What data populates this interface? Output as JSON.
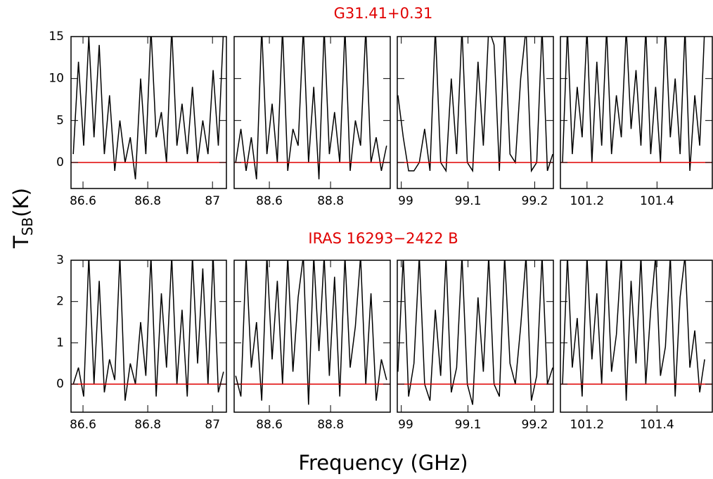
{
  "chart_data": {
    "type": "line",
    "xlabel": "Frequency (GHz)",
    "ylabel": [
      "T",
      "SB",
      "(K)"
    ],
    "line_color": "#000000",
    "hline": {
      "value": 0,
      "color": "#e00000"
    },
    "columns": [
      {
        "xlim": [
          86.563,
          87.043
        ],
        "xticks": [
          86.6,
          86.8,
          87
        ],
        "x": [
          86.57,
          86.586,
          86.602,
          86.618,
          86.634,
          86.65,
          86.666,
          86.682,
          86.698,
          86.714,
          86.73,
          86.746,
          86.762,
          86.778,
          86.794,
          86.81,
          86.826,
          86.842,
          86.858,
          86.874,
          86.89,
          86.906,
          86.922,
          86.938,
          86.954,
          86.97,
          86.986,
          87.002,
          87.018,
          87.034
        ]
      },
      {
        "xlim": [
          88.485,
          88.995
        ],
        "xticks": [
          88.6,
          88.8
        ],
        "x": [
          88.49,
          88.507,
          88.524,
          88.541,
          88.558,
          88.575,
          88.592,
          88.609,
          88.626,
          88.643,
          88.66,
          88.677,
          88.694,
          88.711,
          88.728,
          88.745,
          88.762,
          88.779,
          88.796,
          88.813,
          88.83,
          88.847,
          88.864,
          88.881,
          88.898,
          88.915,
          88.932,
          88.949,
          88.966,
          88.983
        ]
      },
      {
        "xlim": [
          98.994,
          99.228
        ],
        "xticks": [
          99,
          99.1,
          99.2
        ],
        "x": [
          98.995,
          99.003,
          99.011,
          99.019,
          99.027,
          99.035,
          99.043,
          99.051,
          99.059,
          99.067,
          99.075,
          99.083,
          99.091,
          99.099,
          99.107,
          99.115,
          99.123,
          99.131,
          99.139,
          99.147,
          99.155,
          99.163,
          99.171,
          99.179,
          99.187,
          99.195,
          99.203,
          99.211,
          99.219,
          99.227
        ]
      },
      {
        "xlim": [
          101.124,
          101.558
        ],
        "xticks": [
          101.2,
          101.4
        ],
        "x": [
          101.13,
          101.144,
          101.158,
          101.172,
          101.186,
          101.2,
          101.214,
          101.228,
          101.242,
          101.256,
          101.27,
          101.284,
          101.298,
          101.312,
          101.326,
          101.34,
          101.354,
          101.368,
          101.382,
          101.396,
          101.41,
          101.424,
          101.438,
          101.452,
          101.466,
          101.48,
          101.494,
          101.508,
          101.522,
          101.536
        ]
      }
    ],
    "rows": [
      {
        "title": "G31.41+0.31",
        "ylim": [
          -3.1,
          15
        ],
        "yticks": [
          0,
          5,
          10,
          15
        ],
        "values": [
          [
            1,
            12,
            2,
            15,
            3,
            14,
            1,
            8,
            -1,
            5,
            0,
            3,
            -2,
            10,
            1,
            16,
            3,
            6,
            0,
            16,
            2,
            7,
            1,
            9,
            0,
            5,
            1,
            11,
            2,
            16
          ],
          [
            0,
            4,
            -1,
            3,
            -2,
            16,
            1,
            7,
            0,
            16,
            -1,
            4,
            2,
            16,
            0,
            9,
            -2,
            16,
            1,
            6,
            0,
            16,
            -1,
            5,
            2,
            16,
            0,
            3,
            -1,
            2
          ],
          [
            8,
            3,
            -1,
            -1,
            0,
            4,
            -1,
            16,
            0,
            -1,
            10,
            1,
            16,
            0,
            -1,
            12,
            2,
            16,
            14,
            -1,
            16,
            1,
            0,
            10,
            16,
            -1,
            0,
            16,
            -1,
            1
          ],
          [
            0,
            16,
            1,
            9,
            3,
            16,
            0,
            12,
            2,
            16,
            1,
            8,
            3,
            16,
            4,
            11,
            2,
            16,
            1,
            9,
            0,
            16,
            3,
            10,
            1,
            16,
            -1,
            8,
            2,
            16
          ]
        ]
      },
      {
        "title": "IRAS 16293−2422 B",
        "ylim": [
          -0.68,
          3
        ],
        "yticks": [
          0,
          1,
          2,
          3
        ],
        "values": [
          [
            0,
            0.4,
            -0.3,
            3.1,
            0,
            2.5,
            -0.2,
            0.6,
            0.1,
            3.1,
            -0.4,
            0.5,
            0,
            1.5,
            0.2,
            3.1,
            -0.3,
            2.2,
            0.4,
            3.1,
            0,
            1.8,
            -0.3,
            3.1,
            0.5,
            2.8,
            0,
            3.1,
            -0.2,
            0.3
          ],
          [
            0.2,
            -0.3,
            3.1,
            0.4,
            1.5,
            -0.4,
            3.1,
            0.6,
            2.5,
            0,
            3.1,
            0.3,
            2.1,
            3.1,
            -0.5,
            3.1,
            0.8,
            3.1,
            0.2,
            2.6,
            -0.3,
            3.1,
            0.4,
            1.4,
            3.1,
            0,
            2.2,
            -0.4,
            0.6,
            0.1
          ],
          [
            0.3,
            3.1,
            -0.3,
            0.5,
            3.1,
            0,
            -0.4,
            1.8,
            0.2,
            3.1,
            -0.2,
            0.4,
            3.1,
            0,
            -0.5,
            2.1,
            0.3,
            3.1,
            0,
            -0.3,
            3.1,
            0.5,
            0,
            1.4,
            3.1,
            -0.4,
            0.2,
            3.1,
            0,
            0.4
          ],
          [
            0,
            3.1,
            0.4,
            1.6,
            -0.3,
            3.1,
            0.6,
            2.2,
            0,
            3.1,
            0.3,
            1.2,
            3.1,
            -0.4,
            2.5,
            0.5,
            3.1,
            0,
            1.8,
            3.1,
            0.2,
            0.9,
            3.1,
            -0.3,
            2.1,
            3.1,
            0.4,
            1.3,
            -0.2,
            0.6
          ]
        ]
      }
    ]
  }
}
